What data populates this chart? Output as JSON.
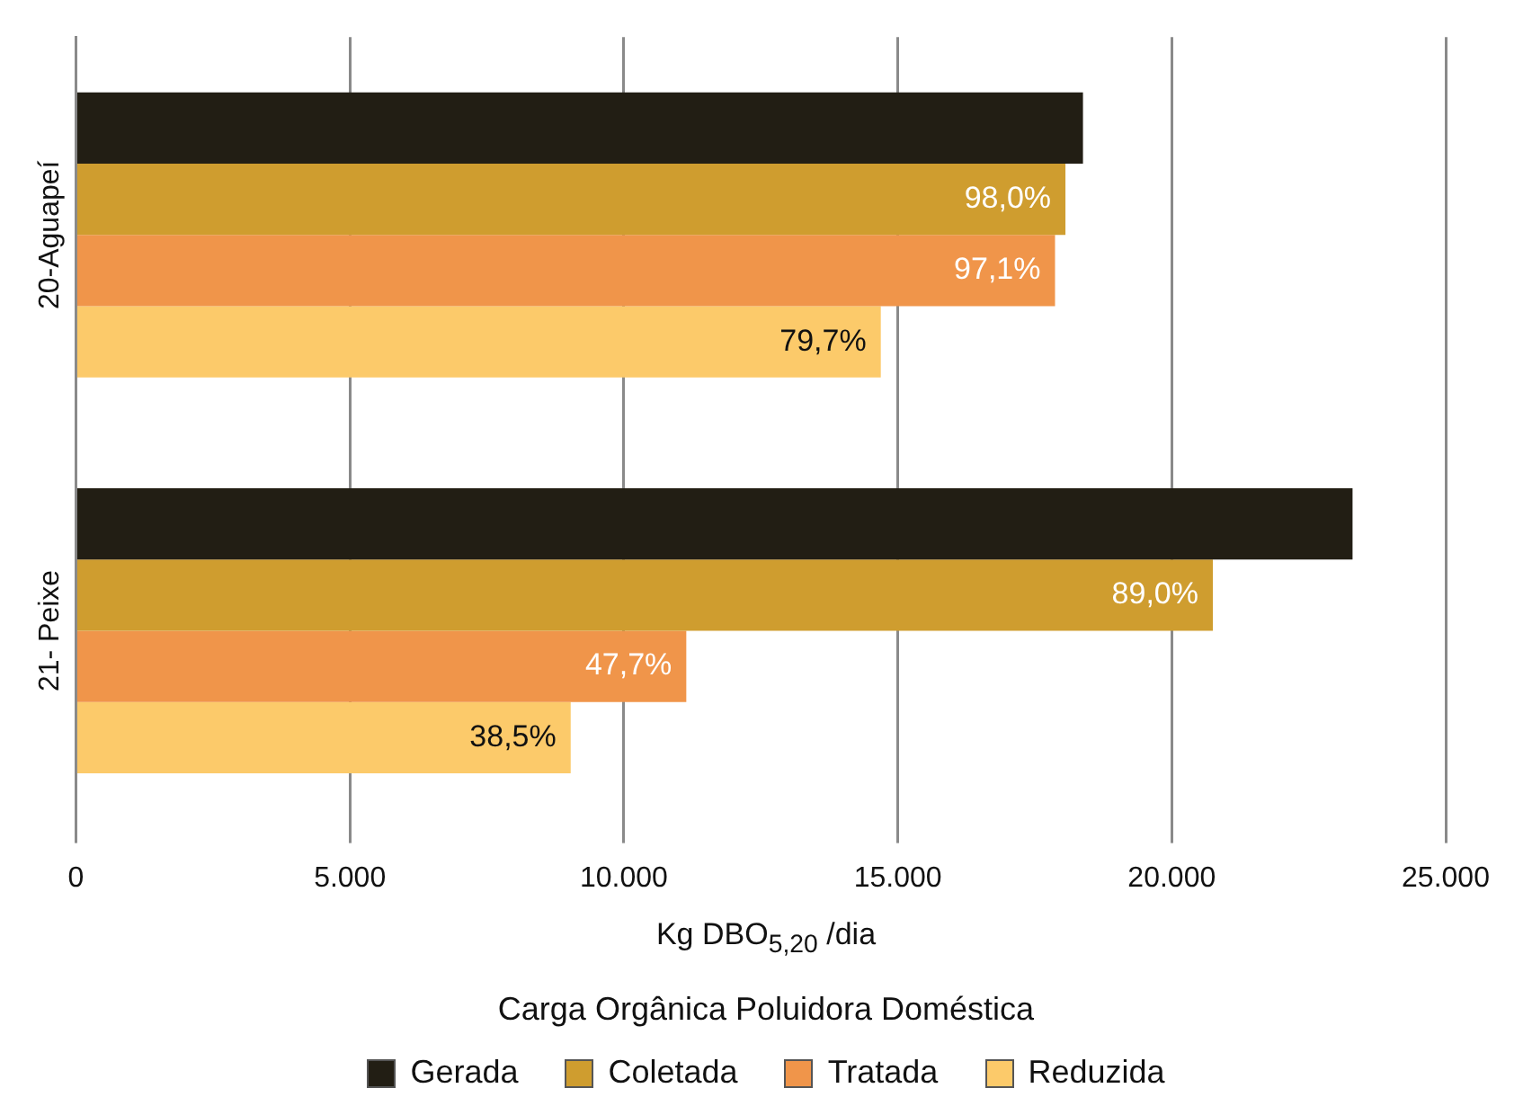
{
  "chart_data": {
    "type": "bar",
    "orientation": "horizontal",
    "title": "Carga Orgânica Poluidora Doméstica",
    "xlabel": "Kg DBO$_{5,20}$ /dia",
    "categories": [
      "20-Aguapeí",
      "21- Peixe"
    ],
    "series": [
      {
        "name": "Gerada",
        "color": "#221e14",
        "values": [
          18380,
          23300
        ]
      },
      {
        "name": "Coletada",
        "color": "#cf9d2f",
        "values": [
          18060,
          20750
        ]
      },
      {
        "name": "Tratada",
        "color": "#f0954a",
        "values": [
          17870,
          11140
        ]
      },
      {
        "name": "Reduzida",
        "color": "#fcca6a",
        "values": [
          14690,
          9030
        ]
      }
    ],
    "annotations": [
      {
        "text": "98,0%",
        "x": 18060,
        "y": "20-Aguapeí"
      },
      {
        "text": "97,1%",
        "x": 17870,
        "y": "20-Aguapeí"
      },
      {
        "text": "79,7%",
        "x": 14690,
        "y": "20-Aguapeí"
      },
      {
        "text": "89,0%",
        "x": 20750,
        "y": "21- Peixe"
      },
      {
        "text": "47,7%",
        "x": 11140,
        "y": "21- Peixe"
      },
      {
        "text": "38,5%",
        "x": 9030,
        "y": "21- Peixe"
      }
    ],
    "xlim": [
      0,
      25000
    ],
    "xticks": [
      {
        "value": 0,
        "label": "0"
      },
      {
        "value": 5000,
        "label": "5.000"
      },
      {
        "value": 10000,
        "label": "10.000"
      },
      {
        "value": 15000,
        "label": "15.000"
      },
      {
        "value": 20000,
        "label": "20.000"
      },
      {
        "value": 25000,
        "label": "25.000"
      }
    ],
    "grid": "x",
    "legend": "bottom"
  }
}
